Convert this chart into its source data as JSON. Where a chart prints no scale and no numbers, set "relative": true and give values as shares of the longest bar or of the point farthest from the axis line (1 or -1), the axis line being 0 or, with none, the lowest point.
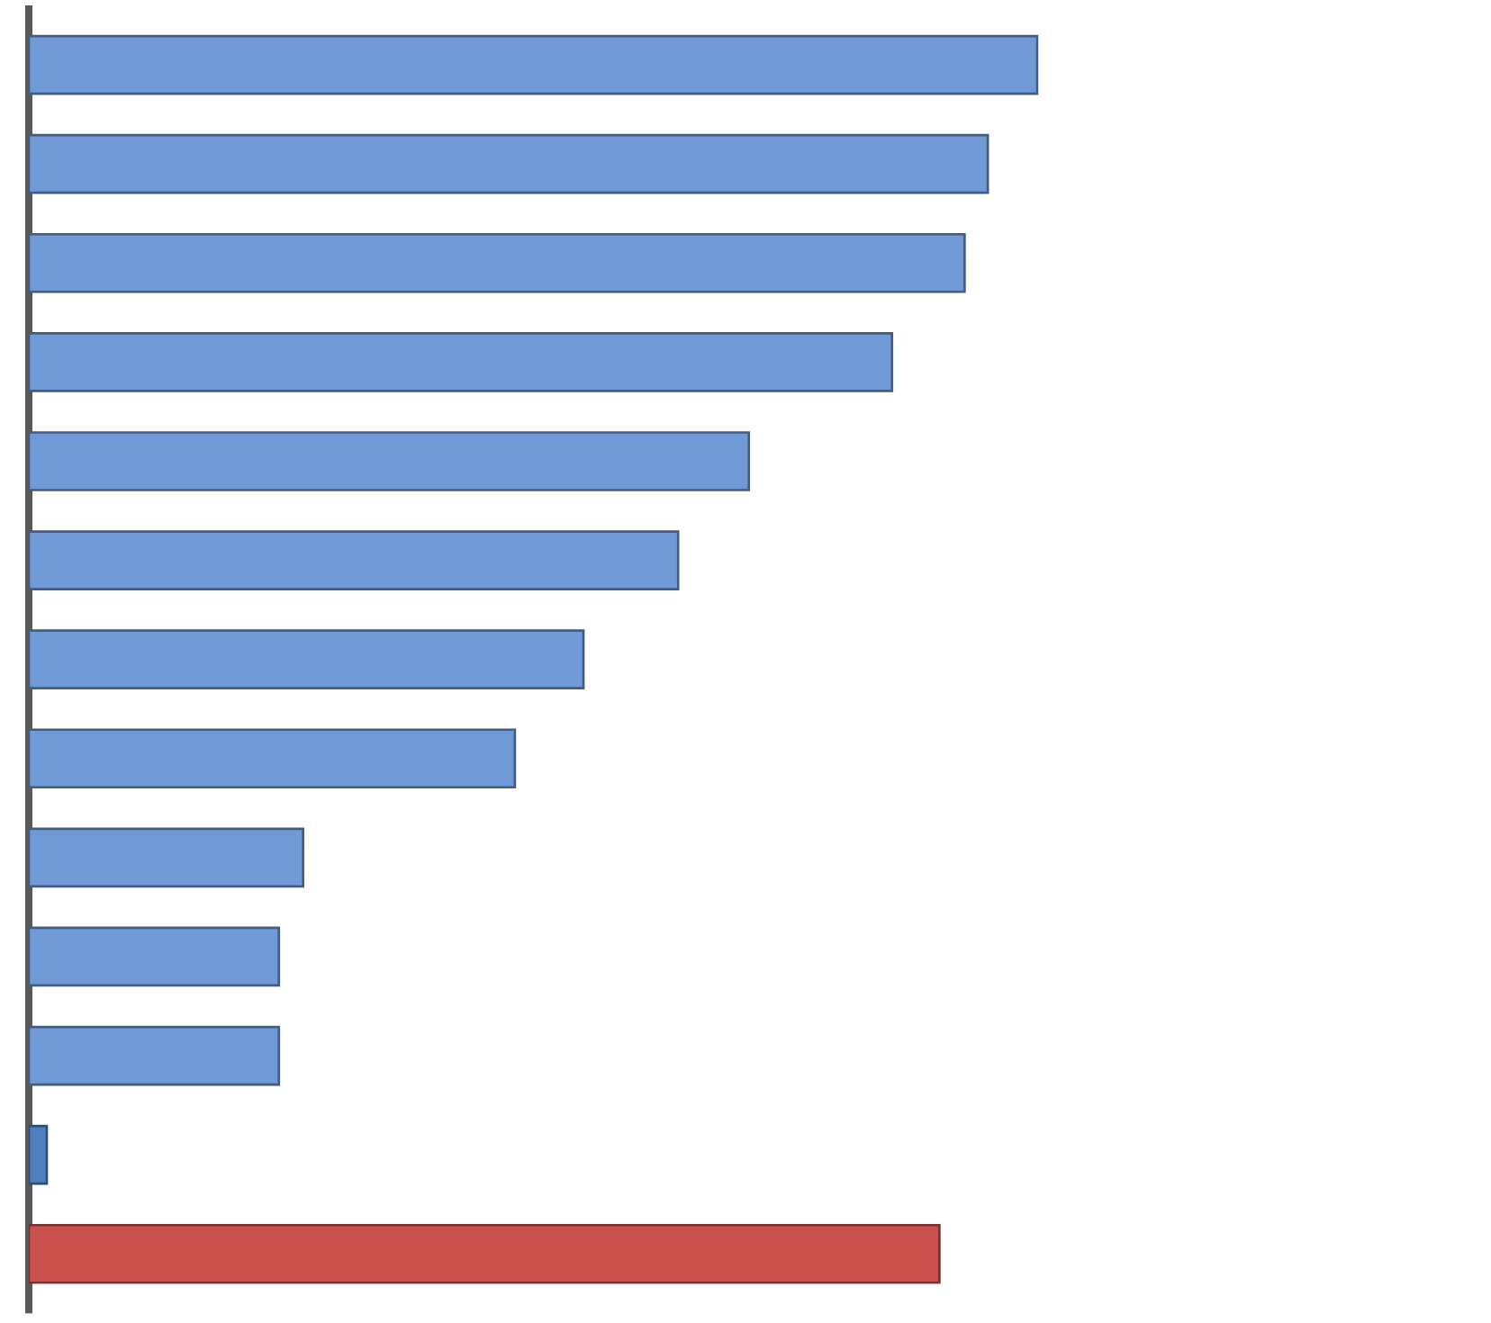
{
  "chart_data": {
    "type": "bar",
    "orientation": "horizontal",
    "relative": true,
    "categories": [
      null,
      null,
      null,
      null,
      null,
      null,
      null,
      null,
      null,
      null,
      null,
      null,
      null
    ],
    "values": [
      1,
      0.951,
      0.928,
      0.856,
      0.714,
      0.644,
      0.55,
      0.482,
      0.272,
      0.248,
      0.248,
      0.018,
      0.903
    ],
    "colors": [
      "#6f9ad6",
      "#6f9ad6",
      "#6f9ad6",
      "#6f9ad6",
      "#6f9ad6",
      "#6f9ad6",
      "#6f9ad6",
      "#6f9ad6",
      "#6f9ad6",
      "#6f9ad6",
      "#6f9ad6",
      "#4f7fbf",
      "#c9504d"
    ]
  }
}
